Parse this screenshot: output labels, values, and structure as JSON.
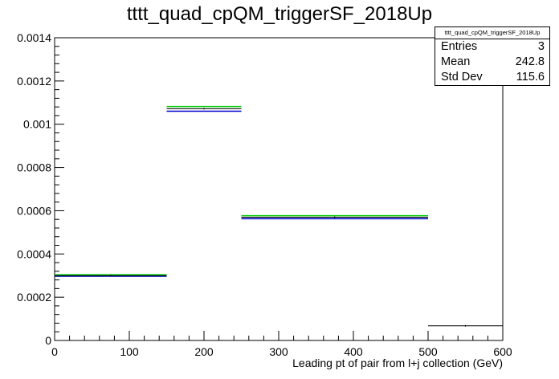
{
  "title": "tttt_quad_cpQM_triggerSF_2018Up",
  "stats": {
    "name": "tttt_quad_cpQM_triggerSF_2018Up",
    "rows": [
      {
        "label": "Entries",
        "value": "3"
      },
      {
        "label": "Mean",
        "value": "242.8"
      },
      {
        "label": "Std Dev",
        "value": "115.6"
      }
    ]
  },
  "chart_data": {
    "type": "histogram",
    "title": "tttt_quad_cpQM_triggerSF_2018Up",
    "xlabel": "Leading pt of pair from l+j collection (GeV)",
    "ylabel": "",
    "xlim": [
      0,
      600
    ],
    "ylim": [
      0,
      0.0014
    ],
    "x_ticks": [
      "0",
      "100",
      "200",
      "300",
      "400",
      "500",
      "600"
    ],
    "y_ticks": [
      "0",
      "0.0002",
      "0.0004",
      "0.0006",
      "0.0008",
      "0.001",
      "0.0012",
      "0.0014"
    ],
    "bins": [
      {
        "xlow": 0,
        "xhigh": 150,
        "nominal": 0.0003,
        "up": 0.000304,
        "down": 0.000297
      },
      {
        "xlow": 150,
        "xhigh": 250,
        "nominal": 0.001072,
        "up": 0.001082,
        "down": 0.00106
      },
      {
        "xlow": 250,
        "xhigh": 500,
        "nominal": 0.00057,
        "up": 0.000577,
        "down": 0.000563
      },
      {
        "xlow": 500,
        "xhigh": 600,
        "nominal": 6.8e-05,
        "up": null,
        "down": null
      }
    ],
    "colors": {
      "nominal": "#000000",
      "up": "#00cc00",
      "down": "#0000cc",
      "frame": "#000000"
    }
  }
}
